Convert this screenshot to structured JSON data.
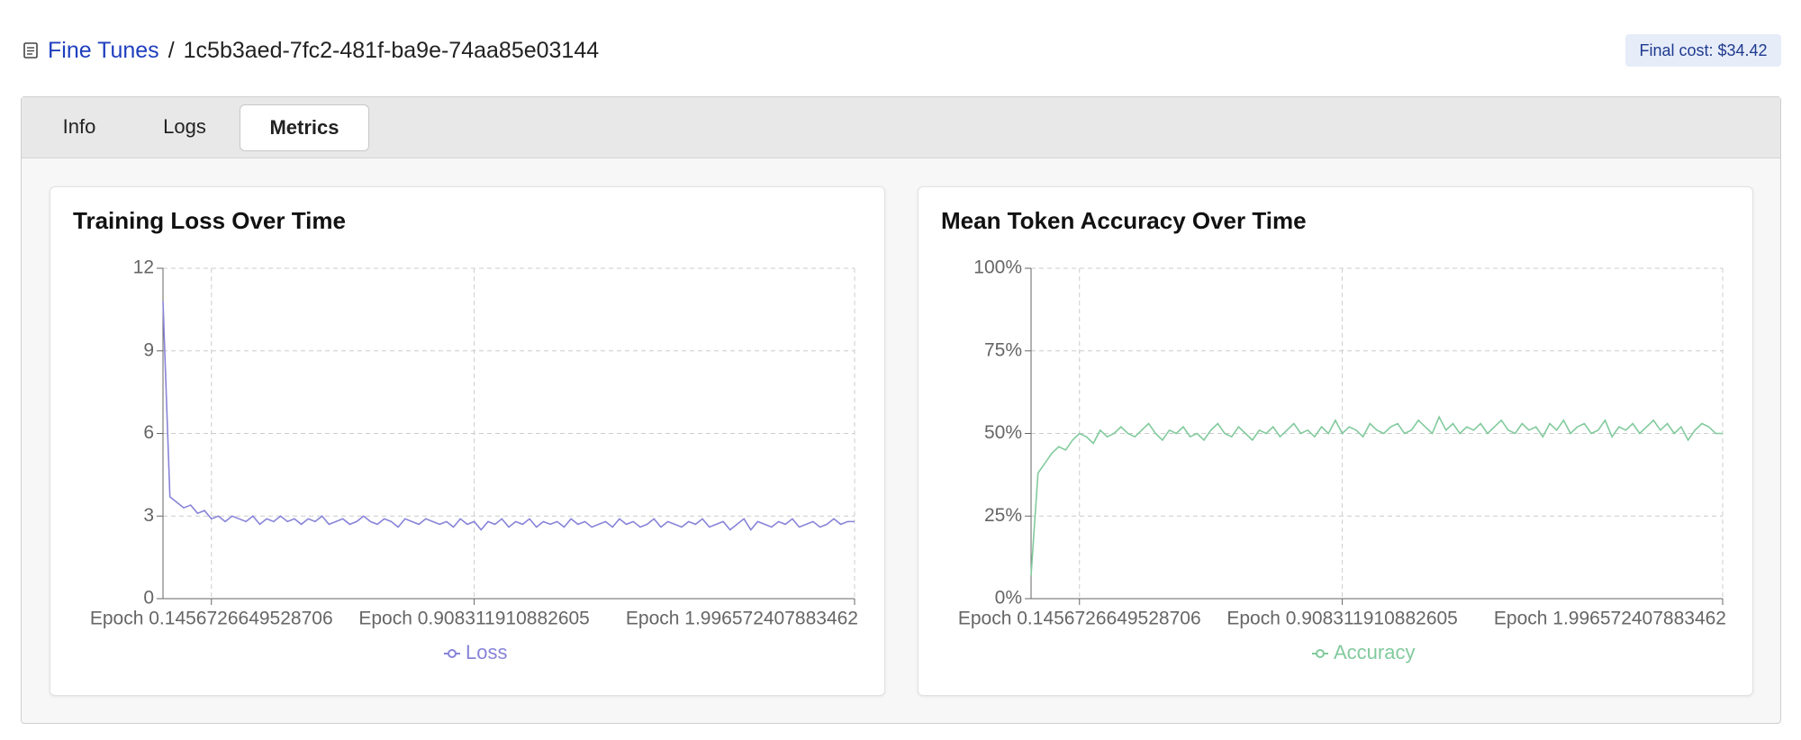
{
  "header": {
    "breadcrumb_root": "Fine Tunes",
    "separator": "/",
    "job_id": "1c5b3aed-7fc2-481f-ba9e-74aa85e03144",
    "cost_badge": "Final cost: $34.42"
  },
  "tabs": [
    "Info",
    "Logs",
    "Metrics"
  ],
  "chart_data": [
    {
      "type": "line",
      "title": "Training Loss Over Time",
      "categories": [
        null,
        null,
        null,
        null,
        null,
        null,
        null,
        "Epoch 0.1456726649528706",
        null,
        null,
        null,
        null,
        null,
        null,
        null,
        null,
        null,
        null,
        null,
        null,
        null,
        null,
        null,
        null,
        null,
        null,
        null,
        null,
        null,
        null,
        null,
        null,
        null,
        null,
        null,
        null,
        null,
        null,
        null,
        null,
        null,
        null,
        null,
        null,
        null,
        "Epoch 0.908311910882605",
        null,
        null,
        null,
        null,
        null,
        null,
        null,
        null,
        null,
        null,
        null,
        null,
        null,
        null,
        null,
        null,
        null,
        null,
        null,
        null,
        null,
        null,
        null,
        null,
        null,
        null,
        null,
        null,
        null,
        null,
        null,
        null,
        null,
        null,
        null,
        null,
        null,
        null,
        null,
        null,
        null,
        null,
        null,
        null,
        null,
        null,
        null,
        null,
        null,
        null,
        null,
        null,
        null,
        null,
        "Epoch 1.996572407883462"
      ],
      "series": [
        {
          "name": "Loss",
          "color": "#8884d8",
          "values": [
            10.8,
            3.7,
            3.5,
            3.3,
            3.4,
            3.1,
            3.2,
            2.9,
            3.0,
            2.8,
            3.0,
            2.9,
            2.8,
            3.0,
            2.7,
            2.9,
            2.8,
            3.0,
            2.8,
            2.9,
            2.7,
            2.9,
            2.8,
            3.0,
            2.7,
            2.8,
            2.9,
            2.7,
            2.8,
            3.0,
            2.8,
            2.7,
            2.9,
            2.8,
            2.6,
            2.9,
            2.8,
            2.7,
            2.9,
            2.8,
            2.7,
            2.8,
            2.6,
            2.9,
            2.7,
            2.8,
            2.5,
            2.8,
            2.7,
            2.9,
            2.6,
            2.8,
            2.7,
            2.9,
            2.6,
            2.8,
            2.7,
            2.8,
            2.6,
            2.9,
            2.7,
            2.8,
            2.6,
            2.7,
            2.8,
            2.6,
            2.9,
            2.7,
            2.8,
            2.6,
            2.7,
            2.9,
            2.6,
            2.8,
            2.7,
            2.6,
            2.8,
            2.7,
            2.9,
            2.6,
            2.7,
            2.8,
            2.5,
            2.7,
            2.9,
            2.5,
            2.8,
            2.7,
            2.6,
            2.8,
            2.7,
            2.9,
            2.6,
            2.7,
            2.8,
            2.6,
            2.7,
            2.9,
            2.7,
            2.8,
            2.8
          ]
        }
      ],
      "ylim": [
        0,
        12
      ],
      "yticks": [
        0,
        3,
        6,
        9,
        12
      ],
      "grid": true
    },
    {
      "type": "line",
      "title": "Mean Token Accuracy Over Time",
      "categories": [
        null,
        null,
        null,
        null,
        null,
        null,
        null,
        "Epoch 0.1456726649528706",
        null,
        null,
        null,
        null,
        null,
        null,
        null,
        null,
        null,
        null,
        null,
        null,
        null,
        null,
        null,
        null,
        null,
        null,
        null,
        null,
        null,
        null,
        null,
        null,
        null,
        null,
        null,
        null,
        null,
        null,
        null,
        null,
        null,
        null,
        null,
        null,
        null,
        "Epoch 0.908311910882605",
        null,
        null,
        null,
        null,
        null,
        null,
        null,
        null,
        null,
        null,
        null,
        null,
        null,
        null,
        null,
        null,
        null,
        null,
        null,
        null,
        null,
        null,
        null,
        null,
        null,
        null,
        null,
        null,
        null,
        null,
        null,
        null,
        null,
        null,
        null,
        null,
        null,
        null,
        null,
        null,
        null,
        null,
        null,
        null,
        null,
        null,
        null,
        null,
        null,
        null,
        null,
        null,
        null,
        null,
        "Epoch 1.996572407883462"
      ],
      "series": [
        {
          "name": "Accuracy",
          "color": "#82ca9d",
          "values": [
            7,
            38,
            41,
            44,
            46,
            45,
            48,
            50,
            49,
            47,
            51,
            49,
            50,
            52,
            50,
            49,
            51,
            53,
            50,
            48,
            51,
            50,
            52,
            49,
            50,
            48,
            51,
            53,
            50,
            49,
            52,
            50,
            48,
            51,
            50,
            52,
            49,
            51,
            53,
            50,
            51,
            49,
            52,
            50,
            54,
            50,
            52,
            51,
            49,
            53,
            51,
            50,
            52,
            53,
            50,
            51,
            54,
            52,
            50,
            55,
            51,
            53,
            50,
            52,
            51,
            53,
            50,
            52,
            54,
            51,
            50,
            53,
            51,
            52,
            49,
            53,
            51,
            54,
            50,
            52,
            53,
            50,
            51,
            54,
            49,
            52,
            51,
            53,
            50,
            52,
            54,
            51,
            53,
            50,
            52,
            48,
            51,
            53,
            52,
            50,
            50
          ]
        }
      ],
      "ylim": [
        0,
        100
      ],
      "yticks": [
        {
          "value": 0,
          "label": "0%"
        },
        {
          "value": 25,
          "label": "25%"
        },
        {
          "value": 50,
          "label": "50%"
        },
        {
          "value": 75,
          "label": "75%"
        },
        {
          "value": 100,
          "label": "100%"
        }
      ],
      "grid": true
    }
  ]
}
